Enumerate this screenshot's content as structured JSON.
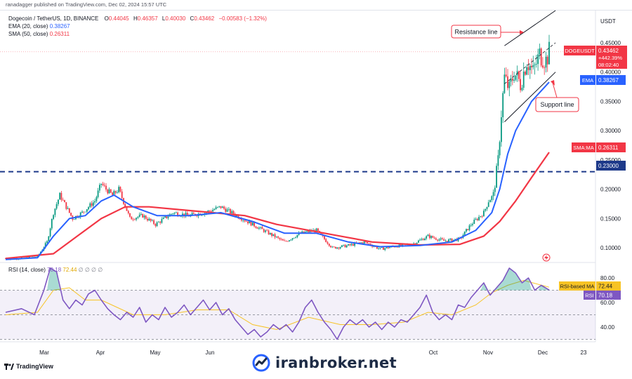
{
  "header": {
    "published": "ranadagger published on TradingView.com, Dec 02, 2024 15:57 UTC",
    "symbol_line": "Dogecoin / TetherUS, 1D, BINANCE",
    "o_label": "O",
    "o_val": "0.44045",
    "h_label": "H",
    "h_val": "0.46357",
    "l_label": "L",
    "l_val": "0.40030",
    "c_label": "C",
    "c_val": "0.43462",
    "change": "−0.00583 (−1.32%)",
    "ema_label": "EMA (20, close)",
    "ema_val": "0.38267",
    "sma_label": "SMA (50, close)",
    "sma_val": "0.26311"
  },
  "price_axis": {
    "unit": "USDT",
    "ticks": [
      "0.45000",
      "0.40000",
      "0.35000",
      "0.30000",
      "0.25000",
      "0.20000",
      "0.15000",
      "0.10000"
    ]
  },
  "rsi_axis": {
    "ticks": [
      "80.00",
      "60.00",
      "40.00"
    ]
  },
  "x_axis": {
    "ticks": [
      "Mar",
      "Apr",
      "May",
      "Jun",
      "Oct",
      "Nov",
      "Dec",
      "23"
    ]
  },
  "badges": {
    "symbol": "DOGEUSDT",
    "price": "0.43462",
    "pct": "+442.39%",
    "countdown": "08:02:40",
    "ema_tag": "EMA",
    "ema_val": "0.38267",
    "sma_tag": "SMA:MA",
    "sma_val": "0.26311",
    "level": "0.23000",
    "rsi_ma_tag": "RSI-based MA",
    "rsi_ma_val": "72.44",
    "rsi_tag": "RSI",
    "rsi_val": "70.18"
  },
  "rsi_header": {
    "label": "RSI (14, close)",
    "val1": "70.18",
    "val2": "72.44",
    "zeros": "∅ ∅ ∅ ∅"
  },
  "annotations": {
    "resistance": "Resistance line",
    "support": "Support line"
  },
  "watermark": "iranbroker.net",
  "tv_logo": "TradingView",
  "colors": {
    "up": "#089981",
    "down": "#f23645",
    "ema": "#2962ff",
    "sma": "#f23645",
    "rsi": "#7e57c2",
    "rsi_ma": "#f7c325",
    "level": "#1e3a8a"
  },
  "chart_data": {
    "type": "candlestick",
    "symbol": "DOGEUSDT",
    "x_ticks": [
      "Mar",
      "Apr",
      "May",
      "Jun",
      "Oct",
      "Nov",
      "Dec",
      "23"
    ],
    "price_ylim": [
      0.075,
      0.505
    ],
    "horizontal_level": 0.23,
    "close_path": [
      {
        "t": 0,
        "v": 0.082
      },
      {
        "t": 10,
        "v": 0.083
      },
      {
        "t": 20,
        "v": 0.085
      },
      {
        "t": 26,
        "v": 0.11
      },
      {
        "t": 30,
        "v": 0.16
      },
      {
        "t": 34,
        "v": 0.19
      },
      {
        "t": 38,
        "v": 0.17
      },
      {
        "t": 42,
        "v": 0.15
      },
      {
        "t": 48,
        "v": 0.16
      },
      {
        "t": 56,
        "v": 0.18
      },
      {
        "t": 60,
        "v": 0.21
      },
      {
        "t": 63,
        "v": 0.2
      },
      {
        "t": 67,
        "v": 0.19
      },
      {
        "t": 71,
        "v": 0.2
      },
      {
        "t": 78,
        "v": 0.15
      },
      {
        "t": 86,
        "v": 0.155
      },
      {
        "t": 94,
        "v": 0.14
      },
      {
        "t": 105,
        "v": 0.16
      },
      {
        "t": 115,
        "v": 0.155
      },
      {
        "t": 125,
        "v": 0.16
      },
      {
        "t": 135,
        "v": 0.17
      },
      {
        "t": 145,
        "v": 0.155
      },
      {
        "t": 155,
        "v": 0.14
      },
      {
        "t": 165,
        "v": 0.125
      },
      {
        "t": 175,
        "v": 0.11
      },
      {
        "t": 185,
        "v": 0.125
      },
      {
        "t": 195,
        "v": 0.13
      },
      {
        "t": 205,
        "v": 0.1
      },
      {
        "t": 215,
        "v": 0.104
      },
      {
        "t": 225,
        "v": 0.11
      },
      {
        "t": 235,
        "v": 0.098
      },
      {
        "t": 245,
        "v": 0.103
      },
      {
        "t": 255,
        "v": 0.106
      },
      {
        "t": 265,
        "v": 0.12
      },
      {
        "t": 275,
        "v": 0.112
      },
      {
        "t": 285,
        "v": 0.115
      },
      {
        "t": 292,
        "v": 0.14
      },
      {
        "t": 300,
        "v": 0.16
      },
      {
        "t": 303,
        "v": 0.18
      },
      {
        "t": 306,
        "v": 0.19
      },
      {
        "t": 309,
        "v": 0.25
      },
      {
        "t": 311,
        "v": 0.33
      },
      {
        "t": 313,
        "v": 0.39
      },
      {
        "t": 316,
        "v": 0.37
      },
      {
        "t": 319,
        "v": 0.4
      },
      {
        "t": 323,
        "v": 0.38
      },
      {
        "t": 327,
        "v": 0.42
      },
      {
        "t": 331,
        "v": 0.4
      },
      {
        "t": 335,
        "v": 0.43
      },
      {
        "t": 339,
        "v": 0.42
      },
      {
        "t": 341,
        "v": 0.43462
      }
    ],
    "ema20_path": [
      {
        "t": 0,
        "v": 0.08
      },
      {
        "t": 20,
        "v": 0.083
      },
      {
        "t": 30,
        "v": 0.12
      },
      {
        "t": 40,
        "v": 0.15
      },
      {
        "t": 50,
        "v": 0.155
      },
      {
        "t": 60,
        "v": 0.18
      },
      {
        "t": 68,
        "v": 0.19
      },
      {
        "t": 80,
        "v": 0.17
      },
      {
        "t": 95,
        "v": 0.155
      },
      {
        "t": 115,
        "v": 0.155
      },
      {
        "t": 135,
        "v": 0.16
      },
      {
        "t": 155,
        "v": 0.145
      },
      {
        "t": 175,
        "v": 0.125
      },
      {
        "t": 195,
        "v": 0.125
      },
      {
        "t": 215,
        "v": 0.11
      },
      {
        "t": 235,
        "v": 0.102
      },
      {
        "t": 260,
        "v": 0.104
      },
      {
        "t": 280,
        "v": 0.11
      },
      {
        "t": 295,
        "v": 0.13
      },
      {
        "t": 305,
        "v": 0.16
      },
      {
        "t": 310,
        "v": 0.2
      },
      {
        "t": 315,
        "v": 0.26
      },
      {
        "t": 320,
        "v": 0.3
      },
      {
        "t": 330,
        "v": 0.35
      },
      {
        "t": 341,
        "v": 0.38267
      }
    ],
    "sma50_path": [
      {
        "t": 0,
        "v": 0.082
      },
      {
        "t": 30,
        "v": 0.09
      },
      {
        "t": 45,
        "v": 0.12
      },
      {
        "t": 60,
        "v": 0.15
      },
      {
        "t": 75,
        "v": 0.17
      },
      {
        "t": 90,
        "v": 0.17
      },
      {
        "t": 110,
        "v": 0.165
      },
      {
        "t": 130,
        "v": 0.16
      },
      {
        "t": 150,
        "v": 0.155
      },
      {
        "t": 170,
        "v": 0.14
      },
      {
        "t": 190,
        "v": 0.13
      },
      {
        "t": 210,
        "v": 0.12
      },
      {
        "t": 230,
        "v": 0.11
      },
      {
        "t": 260,
        "v": 0.105
      },
      {
        "t": 285,
        "v": 0.106
      },
      {
        "t": 300,
        "v": 0.12
      },
      {
        "t": 310,
        "v": 0.145
      },
      {
        "t": 320,
        "v": 0.18
      },
      {
        "t": 330,
        "v": 0.22
      },
      {
        "t": 341,
        "v": 0.26311
      }
    ],
    "channel_upper": [
      {
        "t": 313,
        "v": 0.445
      },
      {
        "t": 345,
        "v": 0.505
      }
    ],
    "channel_mid": [
      {
        "t": 313,
        "v": 0.38
      },
      {
        "t": 345,
        "v": 0.45
      }
    ],
    "channel_lower": [
      {
        "t": 313,
        "v": 0.315
      },
      {
        "t": 345,
        "v": 0.4
      }
    ],
    "rsi_ylim": [
      28,
      92
    ],
    "rsi_levels": [
      70,
      50
    ],
    "rsi_path": [
      {
        "t": 0,
        "v": 52
      },
      {
        "t": 10,
        "v": 55
      },
      {
        "t": 18,
        "v": 50
      },
      {
        "t": 24,
        "v": 70
      },
      {
        "t": 28,
        "v": 88
      },
      {
        "t": 32,
        "v": 85
      },
      {
        "t": 36,
        "v": 62
      },
      {
        "t": 40,
        "v": 55
      },
      {
        "t": 44,
        "v": 62
      },
      {
        "t": 48,
        "v": 58
      },
      {
        "t": 52,
        "v": 67
      },
      {
        "t": 56,
        "v": 70
      },
      {
        "t": 60,
        "v": 62
      },
      {
        "t": 64,
        "v": 55
      },
      {
        "t": 68,
        "v": 50
      },
      {
        "t": 72,
        "v": 46
      },
      {
        "t": 76,
        "v": 52
      },
      {
        "t": 80,
        "v": 48
      },
      {
        "t": 84,
        "v": 56
      },
      {
        "t": 88,
        "v": 44
      },
      {
        "t": 92,
        "v": 50
      },
      {
        "t": 96,
        "v": 46
      },
      {
        "t": 100,
        "v": 56
      },
      {
        "t": 104,
        "v": 48
      },
      {
        "t": 108,
        "v": 52
      },
      {
        "t": 112,
        "v": 58
      },
      {
        "t": 116,
        "v": 50
      },
      {
        "t": 120,
        "v": 56
      },
      {
        "t": 124,
        "v": 62
      },
      {
        "t": 128,
        "v": 54
      },
      {
        "t": 132,
        "v": 60
      },
      {
        "t": 136,
        "v": 50
      },
      {
        "t": 140,
        "v": 55
      },
      {
        "t": 144,
        "v": 46
      },
      {
        "t": 148,
        "v": 40
      },
      {
        "t": 152,
        "v": 34
      },
      {
        "t": 156,
        "v": 38
      },
      {
        "t": 160,
        "v": 32
      },
      {
        "t": 164,
        "v": 36
      },
      {
        "t": 168,
        "v": 42
      },
      {
        "t": 172,
        "v": 38
      },
      {
        "t": 176,
        "v": 42
      },
      {
        "t": 180,
        "v": 36
      },
      {
        "t": 184,
        "v": 44
      },
      {
        "t": 188,
        "v": 56
      },
      {
        "t": 192,
        "v": 62
      },
      {
        "t": 196,
        "v": 52
      },
      {
        "t": 200,
        "v": 44
      },
      {
        "t": 204,
        "v": 38
      },
      {
        "t": 208,
        "v": 30
      },
      {
        "t": 212,
        "v": 40
      },
      {
        "t": 216,
        "v": 46
      },
      {
        "t": 220,
        "v": 42
      },
      {
        "t": 224,
        "v": 46
      },
      {
        "t": 228,
        "v": 40
      },
      {
        "t": 232,
        "v": 44
      },
      {
        "t": 236,
        "v": 38
      },
      {
        "t": 240,
        "v": 44
      },
      {
        "t": 244,
        "v": 40
      },
      {
        "t": 248,
        "v": 46
      },
      {
        "t": 252,
        "v": 44
      },
      {
        "t": 256,
        "v": 50
      },
      {
        "t": 260,
        "v": 56
      },
      {
        "t": 264,
        "v": 66
      },
      {
        "t": 268,
        "v": 52
      },
      {
        "t": 272,
        "v": 46
      },
      {
        "t": 276,
        "v": 50
      },
      {
        "t": 280,
        "v": 46
      },
      {
        "t": 284,
        "v": 58
      },
      {
        "t": 288,
        "v": 56
      },
      {
        "t": 292,
        "v": 64
      },
      {
        "t": 296,
        "v": 70
      },
      {
        "t": 300,
        "v": 76
      },
      {
        "t": 304,
        "v": 66
      },
      {
        "t": 308,
        "v": 72
      },
      {
        "t": 312,
        "v": 78
      },
      {
        "t": 316,
        "v": 88
      },
      {
        "t": 320,
        "v": 84
      },
      {
        "t": 324,
        "v": 76
      },
      {
        "t": 328,
        "v": 80
      },
      {
        "t": 332,
        "v": 70
      },
      {
        "t": 336,
        "v": 74
      },
      {
        "t": 341,
        "v": 70.18
      }
    ],
    "rsi_ma_path": [
      {
        "t": 0,
        "v": 50
      },
      {
        "t": 20,
        "v": 52
      },
      {
        "t": 30,
        "v": 70
      },
      {
        "t": 40,
        "v": 72
      },
      {
        "t": 50,
        "v": 62
      },
      {
        "t": 60,
        "v": 62
      },
      {
        "t": 70,
        "v": 56
      },
      {
        "t": 80,
        "v": 50
      },
      {
        "t": 100,
        "v": 50
      },
      {
        "t": 120,
        "v": 54
      },
      {
        "t": 140,
        "v": 54
      },
      {
        "t": 155,
        "v": 42
      },
      {
        "t": 170,
        "v": 38
      },
      {
        "t": 190,
        "v": 48
      },
      {
        "t": 210,
        "v": 42
      },
      {
        "t": 230,
        "v": 42
      },
      {
        "t": 250,
        "v": 44
      },
      {
        "t": 265,
        "v": 52
      },
      {
        "t": 280,
        "v": 50
      },
      {
        "t": 295,
        "v": 58
      },
      {
        "t": 305,
        "v": 68
      },
      {
        "t": 315,
        "v": 74
      },
      {
        "t": 325,
        "v": 78
      },
      {
        "t": 341,
        "v": 72.44
      }
    ]
  }
}
